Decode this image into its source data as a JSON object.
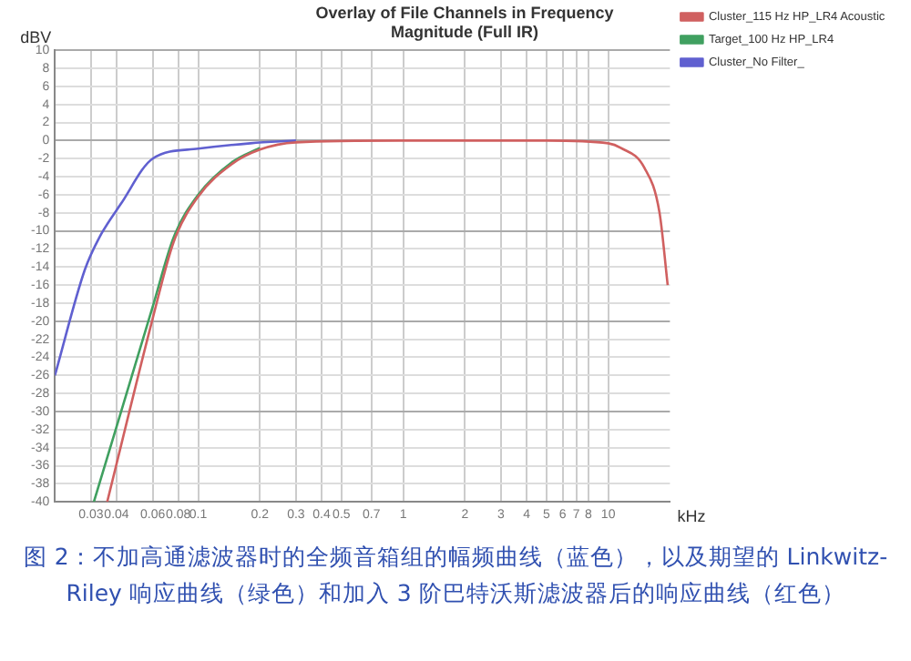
{
  "chart_data": {
    "type": "line",
    "title": "Overlay of File Channels in Frequency\nMagnitude (Full IR)",
    "xlabel": "kHz",
    "ylabel": "dBV",
    "log": "x",
    "grid": true,
    "legend": "top right",
    "marker": "none",
    "line_style": "solid",
    "xlim": [
      0.02,
      20
    ],
    "xticks": [
      0.03,
      0.04,
      0.06,
      0.08,
      0.1,
      0.2,
      0.3,
      0.4,
      0.5,
      0.7,
      1,
      2,
      3,
      4,
      5,
      6,
      7,
      8,
      10
    ],
    "ylim": [
      -40,
      10
    ],
    "yticks": [
      -40,
      -38,
      -36,
      -34,
      -32,
      -30,
      -28,
      -26,
      -24,
      -22,
      -20,
      -18,
      -16,
      -14,
      -12,
      -10,
      -8,
      -6,
      -4,
      -2,
      0,
      2,
      4,
      6,
      8,
      10
    ],
    "series": [
      {
        "name": "Cluster_No Filter_",
        "color": "#6060d0",
        "x": [
          0.02,
          0.028,
          0.033,
          0.042,
          0.06,
          0.1,
          0.18,
          0.3
        ],
        "values": [
          -26,
          -14.3,
          -10.7,
          -7,
          -2,
          -0.9,
          -0.3,
          0
        ]
      },
      {
        "name": "Target_100 Hz HP_LR4",
        "color": "#40a060",
        "x": [
          0.031,
          0.06,
          0.076,
          0.1,
          0.146,
          0.2
        ],
        "values": [
          -40,
          -18.4,
          -10.7,
          -6,
          -2.4,
          -0.8
        ]
      },
      {
        "name": "Cluster_115 Hz HP_LR4 Acoustic",
        "color": "#d06060",
        "x": [
          0.036,
          0.06,
          0.076,
          0.1,
          0.146,
          0.2,
          0.3,
          1,
          5,
          10,
          11.5,
          15,
          17.8,
          19.5
        ],
        "values": [
          -40,
          -19.7,
          -11.2,
          -6.2,
          -2.6,
          -1,
          -0.2,
          0,
          0,
          -0.3,
          -0.8,
          -3,
          -8,
          -16
        ]
      }
    ],
    "annotations": [
      "图 2：不加高通滤波器时的全频音箱组的幅频曲线（蓝色），以及期望的 Linkwitz-Riley 响应曲线（绿色）和加入 3 阶巴特沃斯滤波器后的响应曲线（红色）"
    ]
  }
}
